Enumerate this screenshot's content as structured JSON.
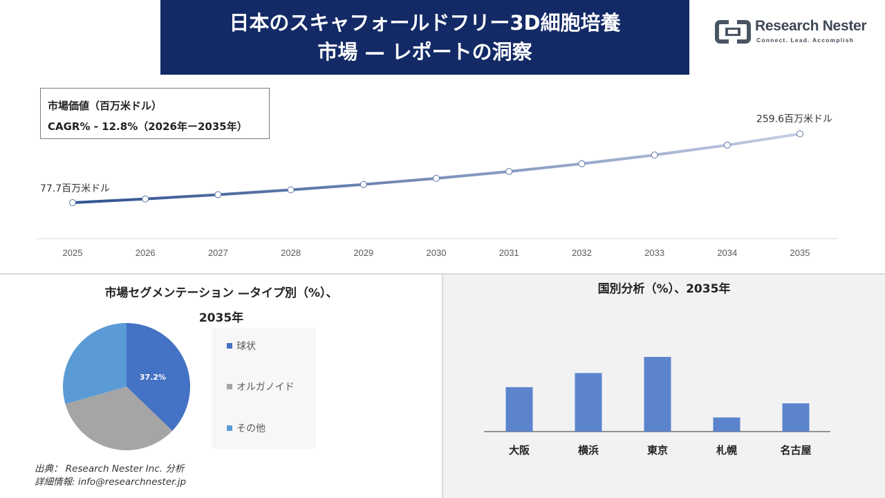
{
  "header": {
    "title_line1": "日本のスキャフォールドフリー3D細胞培養",
    "title_line2": "市場 — レポートの洞察"
  },
  "logo": {
    "name": "Research Nester",
    "tagline": "Connect. Lead. Accomplish",
    "color": "#3e4856"
  },
  "info_box": {
    "line1": "市場価値（百万米ドル）",
    "line2": "CAGR% - 12.8%（2026年ー2035年）"
  },
  "chart_data": [
    {
      "type": "line",
      "x": [
        "2025",
        "2026",
        "2027",
        "2028",
        "2029",
        "2030",
        "2031",
        "2032",
        "2033",
        "2034",
        "2035"
      ],
      "values": [
        77.7,
        87.6,
        98.8,
        111.5,
        125.8,
        141.9,
        160.0,
        180.5,
        203.6,
        229.8,
        259.6
      ],
      "annotations": [
        {
          "x": "2025",
          "text": "77.7百万米ドル"
        },
        {
          "x": "2035",
          "text": "259.6百万米ドル"
        }
      ],
      "colors": {
        "start": "#2f528f",
        "end": "#c5cde3"
      },
      "ylim": [
        0,
        300
      ]
    },
    {
      "type": "pie",
      "title_line1": "市場セグメンテーション —タイプ別（%）、",
      "title_line2": "2035年",
      "slices": [
        {
          "label": "球状",
          "value": 37.2,
          "color": "#4472c4"
        },
        {
          "label": "オルガノイド",
          "value": 33.4,
          "color": "#a5a5a5"
        },
        {
          "label": "その他",
          "value": 29.4,
          "color": "#5b9bd5"
        }
      ],
      "data_label": "37.2%"
    },
    {
      "type": "bar",
      "title": "国別分析（%）、2035年",
      "categories": [
        "大阪",
        "横浜",
        "東京",
        "札幌",
        "名古屋"
      ],
      "values": [
        22,
        29,
        37,
        7,
        14
      ],
      "color": "#5b84cd",
      "ylim": [
        0,
        40
      ]
    }
  ],
  "source": {
    "line1": "出典： Research Nester Inc. 分析",
    "line2": "詳細情報: info@researchnester.jp"
  }
}
